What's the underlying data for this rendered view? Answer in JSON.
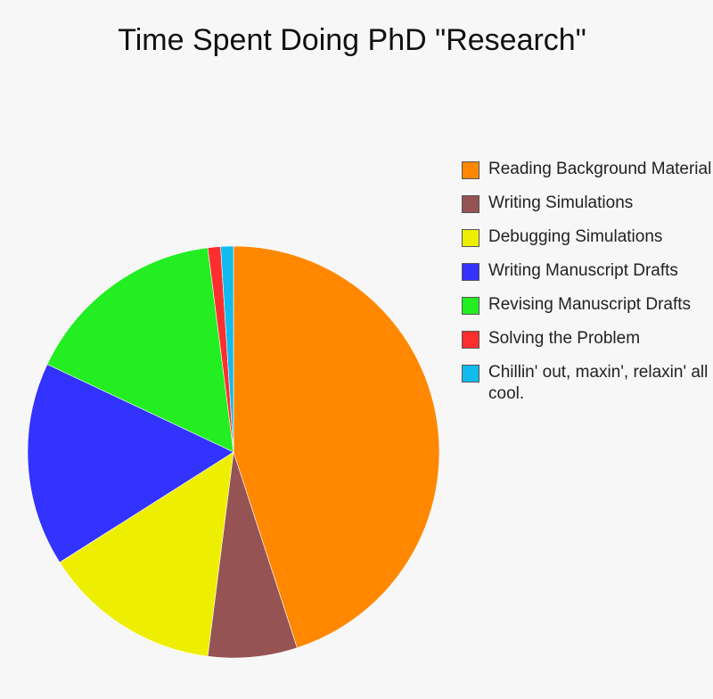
{
  "chart_data": {
    "type": "pie",
    "title": "Time Spent Doing PhD \"Research\"",
    "legend_position": "right",
    "slices": [
      {
        "label": "Reading Background Material",
        "value": 45,
        "color": "#ff8800"
      },
      {
        "label": "Writing Simulations",
        "value": 7,
        "color": "#955353"
      },
      {
        "label": "Debugging Simulations",
        "value": 14,
        "color": "#eeee00"
      },
      {
        "label": "Writing Manuscript Drafts",
        "value": 16,
        "color": "#3333ff"
      },
      {
        "label": "Revising Manuscript Drafts",
        "value": 16,
        "color": "#22ee22"
      },
      {
        "label": "Solving the Problem",
        "value": 1,
        "color": "#ff2e2e"
      },
      {
        "label": "Chillin' out, maxin', relaxin' all cool.",
        "value": 1,
        "color": "#11bbee"
      }
    ]
  }
}
